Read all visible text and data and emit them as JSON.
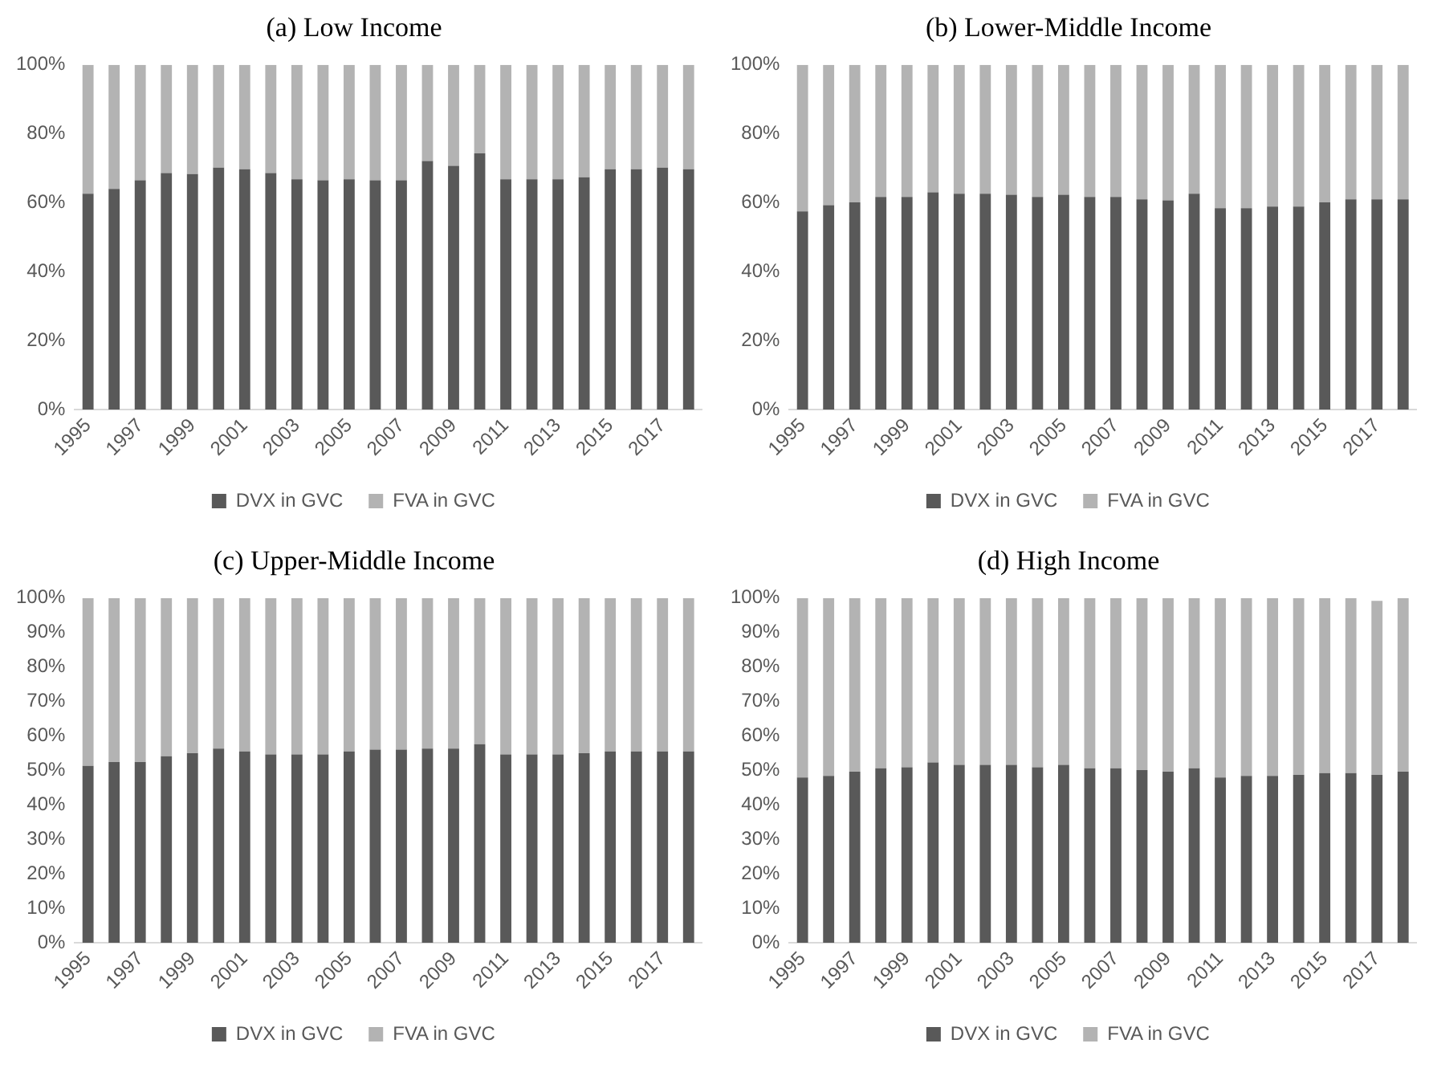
{
  "chart_data": [
    {
      "type": "bar",
      "title": "(a) Low Income",
      "stacked": true,
      "legend": "bottom",
      "categories": [
        "1995",
        null,
        "1997",
        null,
        "1999",
        null,
        "2001",
        null,
        "2003",
        null,
        "2005",
        null,
        "2007",
        null,
        "2009",
        null,
        "2011",
        null,
        "2013",
        null,
        "2015",
        null,
        "2017",
        null
      ],
      "ylim": [
        0,
        100
      ],
      "yticks": [
        {
          "value": 0,
          "label": "0%"
        },
        {
          "value": 20,
          "label": "20%"
        },
        {
          "value": 40,
          "label": "40%"
        },
        {
          "value": 60,
          "label": "60%"
        },
        {
          "value": 80,
          "label": "80%"
        },
        {
          "value": 100,
          "label": "100%"
        }
      ],
      "series": [
        {
          "name": "DVX in GVC",
          "color": "#595959",
          "values": [
            62.6,
            64,
            66.5,
            68.6,
            68.3,
            70.2,
            69.7,
            68.6,
            66.8,
            66.5,
            66.8,
            66.5,
            66.5,
            72.1,
            70.7,
            74.3,
            66.8,
            66.8,
            66.8,
            67.4,
            69.7,
            69.7,
            70.2,
            69.7
          ]
        },
        {
          "name": "FVA in GVC",
          "color": "#b3b3b3",
          "values": [
            37.4,
            36,
            33.5,
            31.4,
            31.7,
            29.8,
            30.3,
            31.4,
            33.2,
            33.5,
            33.2,
            33.5,
            33.5,
            27.9,
            29.3,
            25.7,
            33.2,
            33.2,
            33.2,
            32.6,
            30.3,
            30.3,
            29.8,
            30.3
          ]
        }
      ]
    },
    {
      "type": "bar",
      "title": "(b) Lower-Middle Income",
      "stacked": true,
      "legend": "bottom",
      "categories": [
        "1995",
        null,
        "1997",
        null,
        "1999",
        null,
        "2001",
        null,
        "2003",
        null,
        "2005",
        null,
        "2007",
        null,
        "2009",
        null,
        "2011",
        null,
        "2013",
        null,
        "2015",
        null,
        "2017",
        null
      ],
      "ylim": [
        0,
        100
      ],
      "yticks": [
        {
          "value": 0,
          "label": "0%"
        },
        {
          "value": 20,
          "label": "20%"
        },
        {
          "value": 40,
          "label": "40%"
        },
        {
          "value": 60,
          "label": "60%"
        },
        {
          "value": 80,
          "label": "80%"
        },
        {
          "value": 100,
          "label": "100%"
        }
      ],
      "series": [
        {
          "name": "DVX in GVC",
          "color": "#595959",
          "values": [
            57.5,
            59.3,
            60.1,
            61.7,
            61.7,
            63,
            62.6,
            62.6,
            62.3,
            61.7,
            62.3,
            61.7,
            61.7,
            61,
            60.7,
            62.6,
            58.4,
            58.4,
            58.9,
            58.9,
            60.1,
            61,
            61,
            61
          ]
        },
        {
          "name": "FVA in GVC",
          "color": "#b3b3b3",
          "values": [
            42.5,
            40.7,
            39.9,
            38.3,
            38.3,
            37,
            37.4,
            37.4,
            37.7,
            38.3,
            37.7,
            38.3,
            38.3,
            39,
            39.3,
            37.4,
            41.6,
            41.6,
            41.1,
            41.1,
            39.9,
            39,
            39,
            39
          ]
        }
      ]
    },
    {
      "type": "bar",
      "title": "(c) Upper-Middle Income",
      "stacked": true,
      "legend": "bottom",
      "categories": [
        "1995",
        null,
        "1997",
        null,
        "1999",
        null,
        "2001",
        null,
        "2003",
        null,
        "2005",
        null,
        "2007",
        null,
        "2009",
        null,
        "2011",
        null,
        "2013",
        null,
        "2015",
        null,
        "2017",
        null
      ],
      "ylim": [
        0,
        100
      ],
      "yticks": [
        {
          "value": 0,
          "label": "0%"
        },
        {
          "value": 10,
          "label": "10%"
        },
        {
          "value": 20,
          "label": "20%"
        },
        {
          "value": 30,
          "label": "30%"
        },
        {
          "value": 40,
          "label": "40%"
        },
        {
          "value": 50,
          "label": "50%"
        },
        {
          "value": 60,
          "label": "60%"
        },
        {
          "value": 70,
          "label": "70%"
        },
        {
          "value": 80,
          "label": "80%"
        },
        {
          "value": 90,
          "label": "90%"
        },
        {
          "value": 100,
          "label": "100%"
        }
      ],
      "series": [
        {
          "name": "DVX in GVC",
          "color": "#595959",
          "values": [
            51.3,
            52.4,
            52.4,
            54.1,
            55,
            56.3,
            55.5,
            54.6,
            54.6,
            54.6,
            55.5,
            56,
            56,
            56.3,
            56.3,
            57.6,
            54.6,
            54.6,
            54.6,
            55,
            55.5,
            55.5,
            55.5,
            55.5
          ]
        },
        {
          "name": "FVA in GVC",
          "color": "#b3b3b3",
          "values": [
            48.7,
            47.6,
            47.6,
            45.9,
            45,
            43.7,
            44.5,
            45.4,
            45.4,
            45.4,
            44.5,
            44,
            44,
            43.7,
            43.7,
            42.4,
            45.4,
            45.4,
            45.4,
            45,
            44.5,
            44.5,
            44.5,
            44.5
          ]
        }
      ]
    },
    {
      "type": "bar",
      "title": "(d) High Income",
      "stacked": true,
      "legend": "bottom",
      "categories": [
        "1995",
        null,
        "1997",
        null,
        "1999",
        null,
        "2001",
        null,
        "2003",
        null,
        "2005",
        null,
        "2007",
        null,
        "2009",
        null,
        "2011",
        null,
        "2013",
        null,
        "2015",
        null,
        "2017",
        null
      ],
      "ylim": [
        0,
        100
      ],
      "yticks": [
        {
          "value": 0,
          "label": "0%"
        },
        {
          "value": 10,
          "label": "10%"
        },
        {
          "value": 20,
          "label": "20%"
        },
        {
          "value": 30,
          "label": "30%"
        },
        {
          "value": 40,
          "label": "40%"
        },
        {
          "value": 50,
          "label": "50%"
        },
        {
          "value": 60,
          "label": "60%"
        },
        {
          "value": 70,
          "label": "70%"
        },
        {
          "value": 80,
          "label": "80%"
        },
        {
          "value": 90,
          "label": "90%"
        },
        {
          "value": 100,
          "label": "100%"
        }
      ],
      "series": [
        {
          "name": "DVX in GVC",
          "color": "#595959",
          "values": [
            47.9,
            48.4,
            49.6,
            50.6,
            50.9,
            52.3,
            51.6,
            51.6,
            51.6,
            50.9,
            51.6,
            50.6,
            50.6,
            50.1,
            49.6,
            50.6,
            47.9,
            48.4,
            48.4,
            48.7,
            49.2,
            49.2,
            48.7,
            49.6
          ]
        },
        {
          "name": "FVA in GVC",
          "color": "#b3b3b3",
          "values": [
            52.1,
            51.6,
            50.4,
            49.4,
            49.1,
            47.7,
            48.4,
            48.4,
            48.4,
            49.1,
            48.4,
            49.4,
            49.4,
            49.9,
            50.4,
            49.4,
            52.1,
            51.6,
            51.6,
            51.3,
            50.8,
            50.8,
            50.5,
            50.4
          ]
        }
      ]
    }
  ]
}
